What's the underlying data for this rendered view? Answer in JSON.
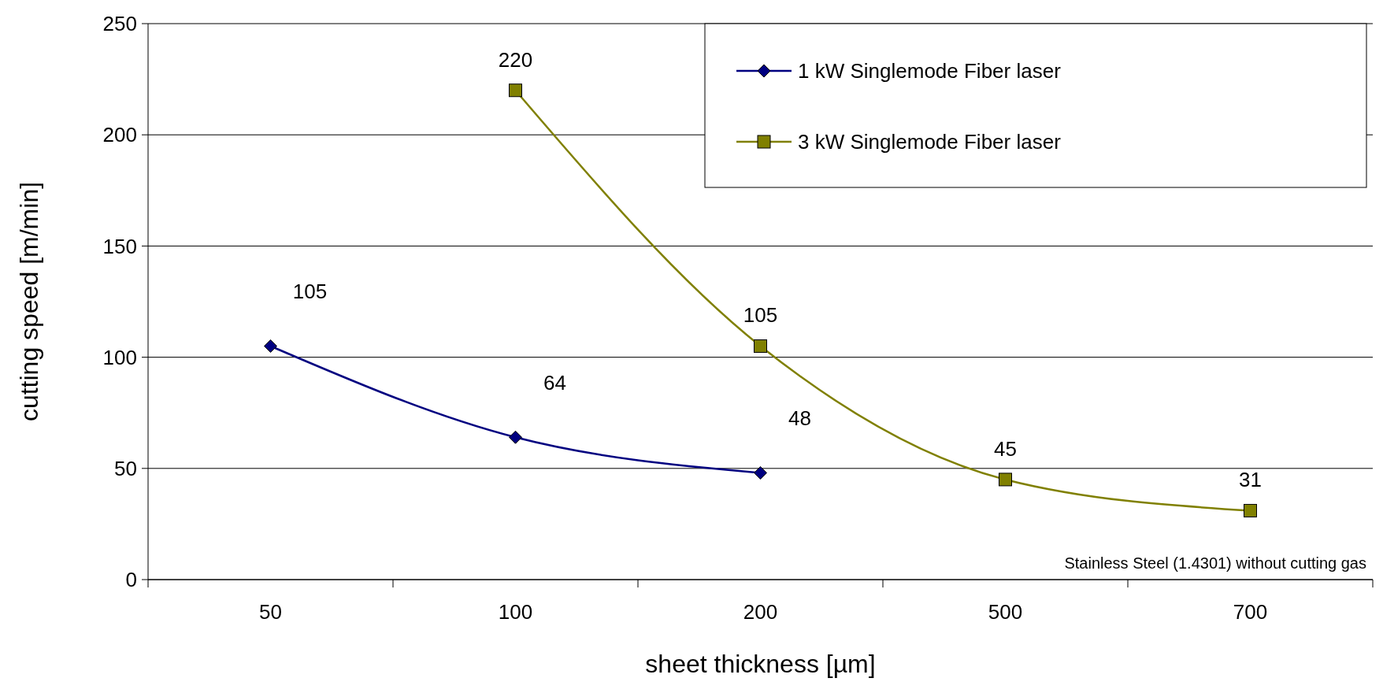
{
  "chart_data": {
    "type": "line",
    "xlabel": "sheet thickness [µm]",
    "ylabel": "cutting speed [m/min]",
    "categories": [
      "50",
      "100",
      "200",
      "500",
      "700"
    ],
    "series": [
      {
        "name": "1 kW Singlemode Fiber laser",
        "color": "#000080",
        "marker": "diamond",
        "values": [
          105,
          64,
          48,
          null,
          null
        ]
      },
      {
        "name": "3 kW Singlemode Fiber laser",
        "color": "#808000",
        "marker": "square",
        "values": [
          null,
          220,
          105,
          45,
          31
        ]
      }
    ],
    "ylim": [
      0,
      250
    ],
    "yticks": [
      0,
      50,
      100,
      150,
      200,
      250
    ],
    "grid": "y",
    "legend": "top right",
    "data_labels": true,
    "annotations": [
      "Stainless Steel (1.4301) without cutting gas"
    ]
  }
}
